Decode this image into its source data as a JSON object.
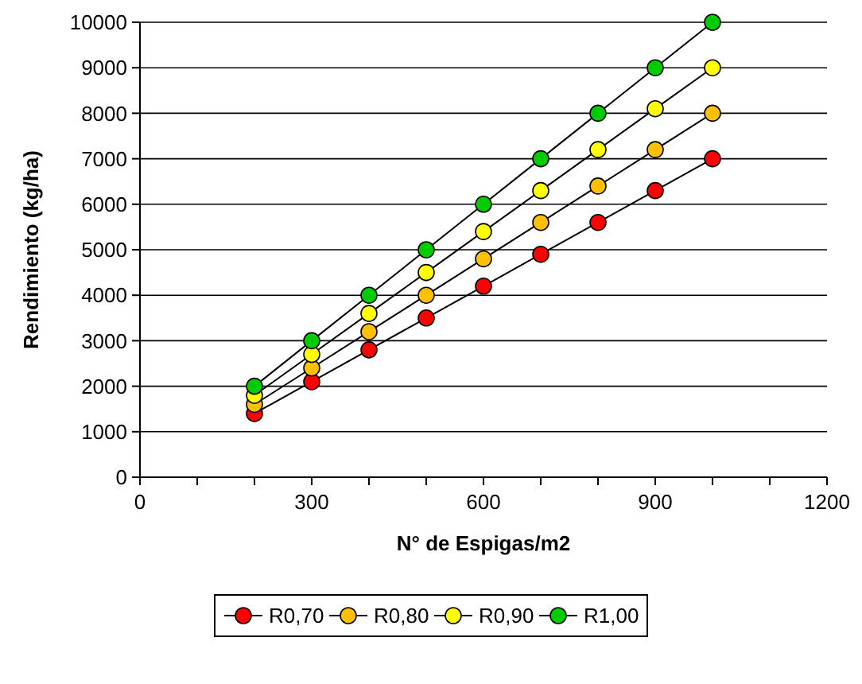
{
  "chart_data": {
    "type": "line",
    "xlabel": "N° de Espigas/m2",
    "ylabel": "Rendimiento (kg/ha)",
    "x": [
      200,
      300,
      400,
      500,
      600,
      700,
      800,
      900,
      1000
    ],
    "series": [
      {
        "name": "R0,70",
        "color": "#ff0000",
        "values": [
          1400,
          2100,
          2800,
          3500,
          4200,
          4900,
          5600,
          6300,
          7000
        ]
      },
      {
        "name": "R0,80",
        "color": "#ffc000",
        "values": [
          1600,
          2400,
          3200,
          4000,
          4800,
          5600,
          6400,
          7200,
          8000
        ]
      },
      {
        "name": "R0,90",
        "color": "#ffff00",
        "values": [
          1800,
          2700,
          3600,
          4500,
          5400,
          6300,
          7200,
          8100,
          9000
        ]
      },
      {
        "name": "R1,00",
        "color": "#00cc00",
        "values": [
          2000,
          3000,
          4000,
          5000,
          6000,
          7000,
          8000,
          9000,
          10000
        ]
      }
    ],
    "xlim": [
      0,
      1200
    ],
    "xticks": [
      0,
      {
        "value": 100,
        "label": null
      },
      {
        "value": 200,
        "label": null
      },
      300,
      {
        "value": 400,
        "label": null
      },
      {
        "value": 500,
        "label": null
      },
      600,
      {
        "value": 700,
        "label": null
      },
      {
        "value": 800,
        "label": null
      },
      900,
      {
        "value": 1000,
        "label": null
      },
      {
        "value": 1100,
        "label": null
      },
      1200
    ],
    "ylim": [
      0,
      10000
    ],
    "yticks": [
      0,
      1000,
      2000,
      3000,
      4000,
      5000,
      6000,
      7000,
      8000,
      9000,
      10000
    ],
    "grid": "y",
    "legend": "bottom",
    "marker": "circle",
    "line_style": "solid"
  }
}
